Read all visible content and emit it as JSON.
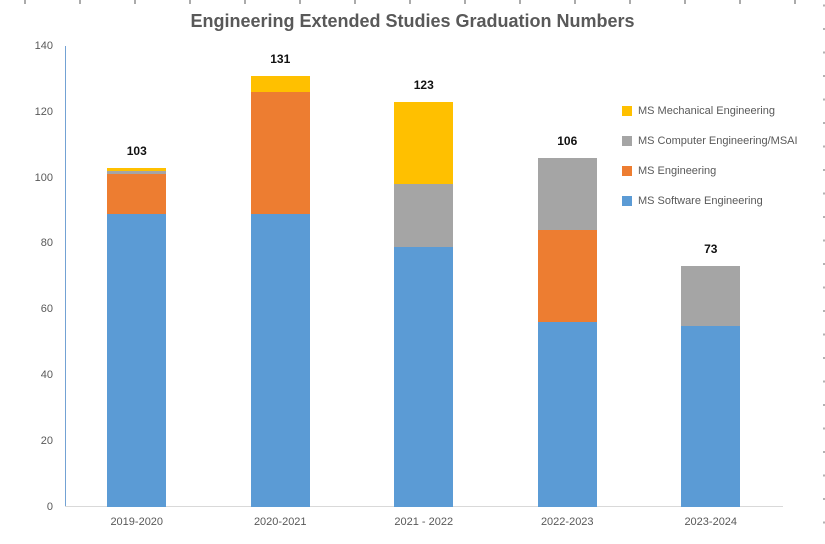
{
  "chart_data": {
    "type": "bar",
    "stacked": true,
    "title": "Engineering Extended Studies Graduation Numbers",
    "xlabel": "",
    "ylabel": "",
    "ylim": [
      0,
      140
    ],
    "yticks": [
      0,
      20,
      40,
      60,
      80,
      100,
      120,
      140
    ],
    "grid": false,
    "legend_position": "right-overlap",
    "categories": [
      "2019-2020",
      "2020-2021",
      "2021 - 2022",
      "2022-2023",
      "2023-2024"
    ],
    "series": [
      {
        "name": "MS Software Engineering",
        "color": "#5B9BD5",
        "values": [
          89,
          89,
          79,
          56,
          55
        ]
      },
      {
        "name": "MS Engineering",
        "color": "#ED7D31",
        "values": [
          12,
          37,
          0,
          28,
          0
        ]
      },
      {
        "name": "MS Computer Engineering/MSAI",
        "color": "#A5A5A5",
        "values": [
          1,
          0,
          19,
          22,
          18
        ]
      },
      {
        "name": "MS Mechanical Engineering",
        "color": "#FFC000",
        "values": [
          1,
          5,
          25,
          0,
          0
        ]
      }
    ],
    "totals": [
      103,
      131,
      123,
      106,
      73
    ],
    "legend": [
      "MS Mechanical Engineering",
      "MS Computer Engineering/MSAI",
      "MS Engineering",
      "MS Software Engineering"
    ]
  }
}
